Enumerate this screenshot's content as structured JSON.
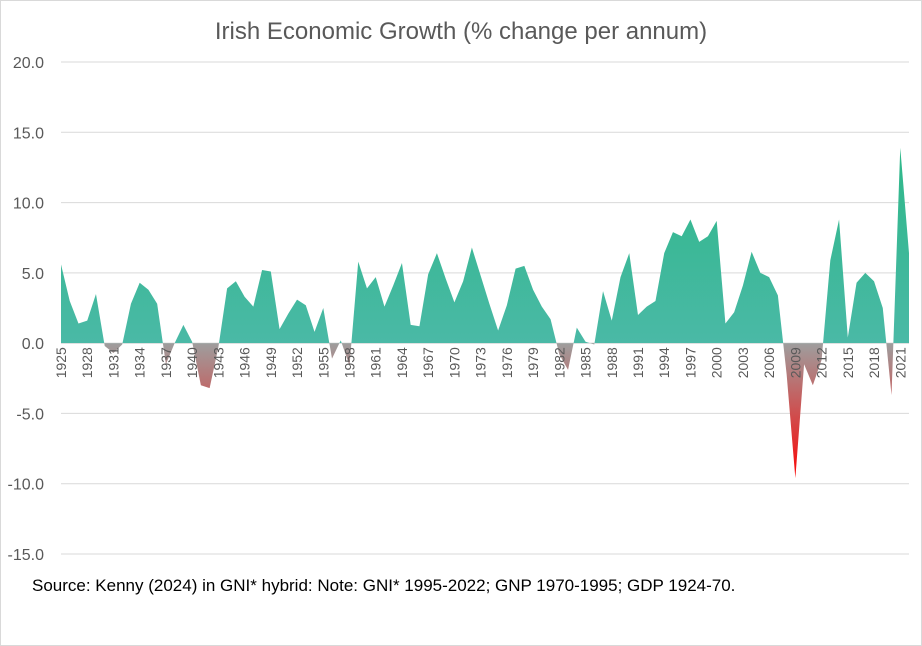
{
  "colors": {
    "positive_top": "#22b77c",
    "positive_bottom": "#4ab9a6",
    "negative_top": "#9e9e9e",
    "negative_bottom": "#ff0000",
    "gridline": "#d9d9d9",
    "axis_text": "#595959"
  },
  "chart_data": {
    "type": "area",
    "title": "Irish Economic Growth (% change per annum)",
    "source_note": "Source: Kenny (2024) in GNI* hybrid: Note: GNI* 1995-2022; GNP 1970-1995; GDP 1924-70.",
    "xlabel": "",
    "ylabel": "",
    "ylim": [
      -15,
      20
    ],
    "y_ticks": [
      "20.0",
      "15.0",
      "10.0",
      "5.0",
      "0.0",
      "-5.0",
      "-10.0",
      "-15.0"
    ],
    "y_tick_values": [
      20,
      15,
      10,
      5,
      0,
      -5,
      -10,
      -15
    ],
    "x_tick_labels": [
      "1925",
      "1928",
      "1931",
      "1934",
      "1937",
      "1940",
      "1943",
      "1946",
      "1949",
      "1952",
      "1955",
      "1958",
      "1961",
      "1964",
      "1967",
      "1970",
      "1973",
      "1976",
      "1979",
      "1982",
      "1985",
      "1988",
      "1991",
      "1994",
      "1997",
      "2000",
      "2003",
      "2006",
      "2009",
      "2012",
      "2015",
      "2018",
      "2021"
    ],
    "series": [
      {
        "name": "Growth",
        "x": [
          1925,
          1926,
          1927,
          1928,
          1929,
          1930,
          1931,
          1932,
          1933,
          1934,
          1935,
          1936,
          1937,
          1938,
          1939,
          1940,
          1941,
          1942,
          1943,
          1944,
          1945,
          1946,
          1947,
          1948,
          1949,
          1950,
          1951,
          1952,
          1953,
          1954,
          1955,
          1956,
          1957,
          1958,
          1959,
          1960,
          1961,
          1962,
          1963,
          1964,
          1965,
          1966,
          1967,
          1968,
          1969,
          1970,
          1971,
          1972,
          1973,
          1974,
          1975,
          1976,
          1977,
          1978,
          1979,
          1980,
          1981,
          1982,
          1983,
          1984,
          1985,
          1986,
          1987,
          1988,
          1989,
          1990,
          1991,
          1992,
          1993,
          1994,
          1995,
          1996,
          1997,
          1998,
          1999,
          2000,
          2001,
          2002,
          2003,
          2004,
          2005,
          2006,
          2007,
          2008,
          2009,
          2010,
          2011,
          2012,
          2013,
          2014,
          2015,
          2016,
          2017,
          2018,
          2019,
          2020,
          2021,
          2022
        ],
        "values": [
          5.6,
          3.0,
          1.4,
          1.6,
          3.5,
          -0.2,
          -0.7,
          -0.1,
          2.8,
          4.3,
          3.8,
          2.8,
          -1.5,
          0.0,
          1.3,
          0.1,
          -3.0,
          -3.2,
          -0.3,
          3.9,
          4.4,
          3.3,
          2.6,
          5.2,
          5.1,
          1.0,
          2.1,
          3.1,
          2.7,
          0.8,
          2.5,
          -1.1,
          0.2,
          -1.6,
          5.8,
          3.9,
          4.7,
          2.6,
          4.1,
          5.7,
          1.3,
          1.2,
          4.9,
          6.4,
          4.6,
          2.9,
          4.4,
          6.8,
          4.8,
          2.8,
          0.9,
          2.7,
          5.3,
          5.5,
          3.8,
          2.6,
          1.7,
          -0.8,
          -1.9,
          1.1,
          0.1,
          -0.1,
          3.7,
          1.6,
          4.7,
          6.4,
          2.0,
          2.6,
          3.0,
          6.4,
          7.9,
          7.6,
          8.8,
          7.2,
          7.6,
          8.7,
          1.4,
          2.2,
          4.1,
          6.5,
          5.0,
          4.7,
          3.4,
          -2.2,
          -9.6,
          -1.5,
          -3.0,
          -1.2,
          5.9,
          8.8,
          0.4,
          4.3,
          5.0,
          4.4,
          2.5,
          -3.7,
          13.9,
          6.4
        ]
      }
    ]
  }
}
